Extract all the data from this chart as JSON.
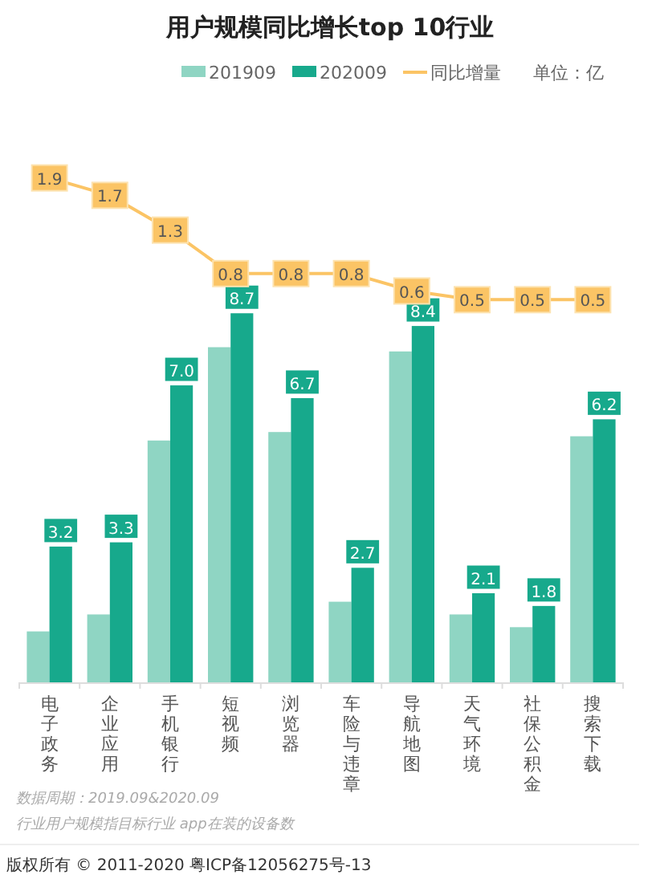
{
  "chart_data": {
    "type": "bar",
    "title": "用户规模同比增长top 10行业",
    "ylabel": "单位：亿",
    "categories": [
      "电子政务",
      "企业应用",
      "手机银行",
      "短视频",
      "浏览器",
      "车险与违章",
      "导航地图",
      "天气环境",
      "社保公积金",
      "搜索下载"
    ],
    "series": [
      {
        "name": "201909",
        "color": "#8fd5c3",
        "values": [
          1.2,
          1.6,
          5.7,
          7.9,
          5.9,
          1.9,
          7.8,
          1.6,
          1.3,
          5.8
        ]
      },
      {
        "name": "202009",
        "color": "#17a98c",
        "values": [
          3.2,
          3.3,
          7.0,
          8.7,
          6.7,
          2.7,
          8.4,
          2.1,
          1.8,
          6.2
        ],
        "value_labels": [
          "3.2",
          "3.3",
          "7.0",
          "8.7",
          "6.7",
          "2.7",
          "8.4",
          "2.1",
          "1.8",
          "6.2"
        ]
      },
      {
        "name": "同比增量",
        "type": "line",
        "axis": "y2",
        "marker": "square",
        "color": "#fbc465",
        "values": [
          1.9,
          1.7,
          1.3,
          0.8,
          0.8,
          0.8,
          0.6,
          0.5,
          0.5,
          0.5
        ],
        "value_labels": [
          "1.9",
          "1.7",
          "1.3",
          "0.8",
          "0.8",
          "0.8",
          "0.6",
          "0.5",
          "0.5",
          "0.5"
        ]
      }
    ],
    "ylim": [
      0,
      12.3
    ],
    "y2lim": [
      -3.9,
      2.1
    ],
    "legend": "top",
    "annotations": [
      "数据周期：2019.09&2020.09",
      "行业用户规模指目标行业 app在装的设备数",
      "版权所有 © 2011-2020 粤ICP备12056275号-13"
    ]
  }
}
